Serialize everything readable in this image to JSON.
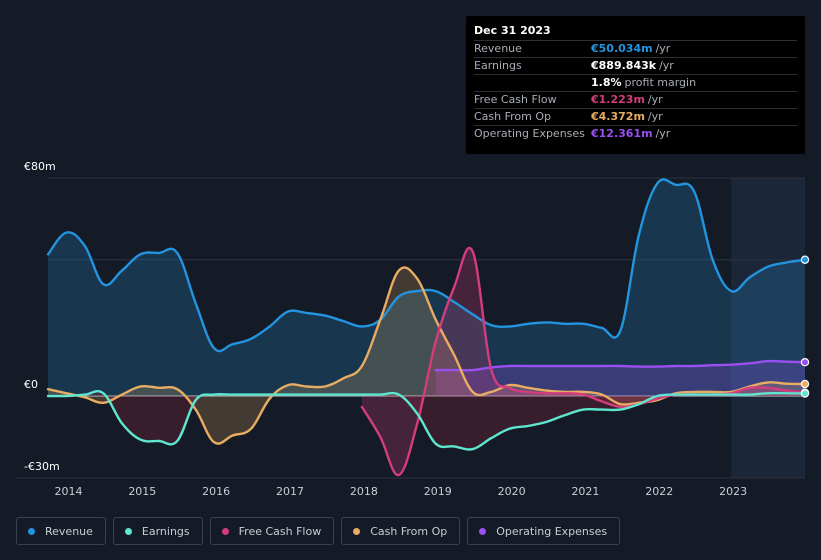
{
  "tooltip": {
    "date": "Dec 31 2023",
    "rows": [
      {
        "label": "Revenue",
        "value": "€50.034m",
        "unit": "/yr",
        "color": "#2394df"
      },
      {
        "label": "Earnings",
        "value": "€889.843k",
        "unit": "/yr",
        "color": "#ffffff"
      },
      {
        "label": "",
        "value": "1.8%",
        "unit": "profit margin",
        "color": "#ffffff"
      },
      {
        "label": "Free Cash Flow",
        "value": "€1.223m",
        "unit": "/yr",
        "color": "#d43d7d"
      },
      {
        "label": "Cash From Op",
        "value": "€4.372m",
        "unit": "/yr",
        "color": "#e8ac62"
      },
      {
        "label": "Operating Expenses",
        "value": "€12.361m",
        "unit": "/yr",
        "color": "#9a4ff0"
      }
    ]
  },
  "legend": [
    {
      "label": "Revenue",
      "color": "#2394df"
    },
    {
      "label": "Earnings",
      "color": "#5ee6cf"
    },
    {
      "label": "Free Cash Flow",
      "color": "#d43d7d"
    },
    {
      "label": "Cash From Op",
      "color": "#e8ac62"
    },
    {
      "label": "Operating Expenses",
      "color": "#9a4ff0"
    }
  ],
  "chart_data": {
    "type": "area",
    "title": "",
    "xlabel": "",
    "ylabel": "",
    "y_tick_labels": [
      "€80m",
      "€0",
      "-€30m"
    ],
    "ylim": [
      -30,
      80
    ],
    "xlim": [
      2013.75,
      2024.0
    ],
    "x_tick_labels": [
      "2014",
      "2015",
      "2016",
      "2017",
      "2018",
      "2019",
      "2020",
      "2021",
      "2022",
      "2023"
    ],
    "x_tick_values": [
      2014,
      2015,
      2016,
      2017,
      2018,
      2019,
      2020,
      2021,
      2022,
      2023
    ],
    "highlight_from": 2023.0,
    "series": [
      {
        "name": "Revenue",
        "color": "#2394df",
        "x": [
          2013.75,
          2014.0,
          2014.25,
          2014.5,
          2014.75,
          2015.0,
          2015.25,
          2015.5,
          2015.75,
          2016.0,
          2016.25,
          2016.5,
          2016.75,
          2017.0,
          2017.25,
          2017.5,
          2017.75,
          2018.0,
          2018.25,
          2018.5,
          2018.75,
          2019.0,
          2019.25,
          2019.5,
          2019.75,
          2020.0,
          2020.25,
          2020.5,
          2020.75,
          2021.0,
          2021.25,
          2021.5,
          2021.75,
          2022.0,
          2022.25,
          2022.5,
          2022.75,
          2023.0,
          2023.25,
          2023.5,
          2023.75,
          2024.0
        ],
        "values": [
          52,
          60,
          55,
          41,
          46,
          52,
          52.5,
          52.5,
          34,
          17.5,
          19,
          21,
          25.5,
          31,
          30.5,
          29.5,
          27.5,
          25.5,
          28,
          36.5,
          38.5,
          38.5,
          34.5,
          30,
          26,
          25.5,
          26.5,
          27,
          26.5,
          26.5,
          25,
          24,
          59,
          78,
          77.5,
          75,
          50,
          38.5,
          43.5,
          47.5,
          49,
          50
        ]
      },
      {
        "name": "Earnings",
        "color": "#5ee6cf",
        "x": [
          2013.75,
          2014.0,
          2014.25,
          2014.5,
          2014.75,
          2015.0,
          2015.25,
          2015.5,
          2015.75,
          2016.0,
          2016.25,
          2016.5,
          2016.75,
          2017.0,
          2017.25,
          2017.5,
          2017.75,
          2018.0,
          2018.25,
          2018.5,
          2018.75,
          2019.0,
          2019.25,
          2019.5,
          2019.75,
          2020.0,
          2020.25,
          2020.5,
          2020.75,
          2021.0,
          2021.25,
          2021.5,
          2021.75,
          2022.0,
          2022.25,
          2022.5,
          2022.75,
          2023.0,
          2023.25,
          2023.5,
          2023.75,
          2024.0
        ],
        "values": [
          0,
          0,
          0.5,
          1,
          -10,
          -16,
          -16.5,
          -16.5,
          -1.5,
          0.5,
          0.5,
          0.5,
          0.5,
          0.5,
          0.5,
          0.5,
          0.5,
          0.5,
          0.5,
          0.5,
          -6.5,
          -17.5,
          -18.5,
          -19.5,
          -15.5,
          -12,
          -11,
          -9.5,
          -7,
          -5,
          -5,
          -5,
          -3,
          0,
          0.5,
          0.5,
          0.5,
          0.5,
          0.5,
          1,
          1,
          0.9
        ]
      },
      {
        "name": "Free Cash Flow",
        "color": "#d43d7d",
        "x": [
          2018.0,
          2018.25,
          2018.5,
          2018.75,
          2019.0,
          2019.25,
          2019.5,
          2019.75,
          2020.0,
          2020.25,
          2020.5,
          2020.75,
          2021.0,
          2021.25,
          2021.5,
          2021.75,
          2022.0,
          2022.25,
          2022.5,
          2022.75,
          2023.0,
          2023.25,
          2023.5,
          2023.75,
          2024.0
        ],
        "values": [
          -4,
          -15,
          -29,
          -10,
          20,
          40,
          53,
          10,
          3,
          1.5,
          1,
          1,
          0.5,
          -2,
          -4,
          -3,
          -1,
          0.5,
          0.5,
          0.5,
          1,
          3,
          3,
          2,
          1.2
        ]
      },
      {
        "name": "Cash From Op",
        "color": "#e8ac62",
        "x": [
          2013.75,
          2014.0,
          2014.25,
          2014.5,
          2014.75,
          2015.0,
          2015.25,
          2015.5,
          2015.75,
          2016.0,
          2016.25,
          2016.5,
          2016.75,
          2017.0,
          2017.25,
          2017.5,
          2017.75,
          2018.0,
          2018.25,
          2018.5,
          2018.75,
          2019.0,
          2019.25,
          2019.5,
          2019.75,
          2020.0,
          2020.25,
          2020.5,
          2020.75,
          2021.0,
          2021.25,
          2021.5,
          2021.75,
          2022.0,
          2022.25,
          2022.5,
          2022.75,
          2023.0,
          2023.25,
          2023.5,
          2023.75,
          2024.0
        ],
        "values": [
          2.5,
          1,
          -0.5,
          -2.5,
          0.5,
          3.5,
          3,
          2.5,
          -5,
          -17,
          -14.5,
          -12,
          -1,
          4,
          3.5,
          3.5,
          6.5,
          11,
          28,
          46,
          43,
          28,
          15,
          1.5,
          1.5,
          4,
          3,
          2,
          1.5,
          1.5,
          0.5,
          -3,
          -2.5,
          -1.5,
          1,
          1.5,
          1.5,
          1.5,
          3.5,
          5,
          4.5,
          4.4
        ]
      },
      {
        "name": "Operating Expenses",
        "color": "#9a4ff0",
        "x": [
          2019.0,
          2019.25,
          2019.5,
          2019.75,
          2020.0,
          2020.25,
          2020.5,
          2020.75,
          2021.0,
          2021.25,
          2021.5,
          2021.75,
          2022.0,
          2022.25,
          2022.5,
          2022.75,
          2023.0,
          2023.25,
          2023.5,
          2023.75,
          2024.0
        ],
        "values": [
          9.5,
          9.5,
          9.5,
          10.5,
          11,
          11,
          11,
          11,
          11,
          11,
          11,
          10.8,
          10.8,
          11,
          11,
          11.3,
          11.5,
          12,
          12.8,
          12.6,
          12.4
        ]
      }
    ]
  }
}
